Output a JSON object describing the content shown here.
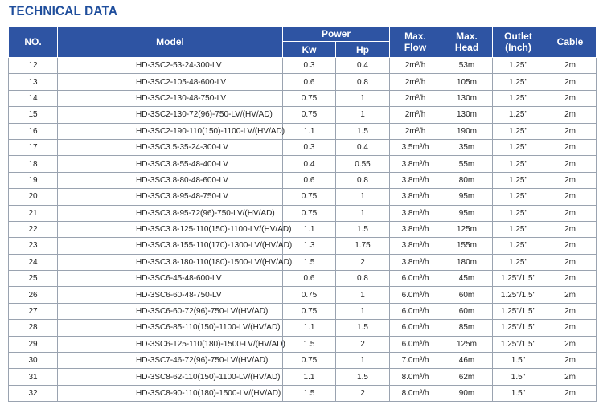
{
  "title": "TECHNICAL DATA",
  "headers": {
    "no": "NO.",
    "model": "Model",
    "power": "Power",
    "kw": "Kw",
    "hp": "Hp",
    "flow": [
      "Max.",
      "Flow"
    ],
    "head": [
      "Max.",
      "Head"
    ],
    "outlet": [
      "Outlet",
      "(Inch)"
    ],
    "cable": "Cable"
  },
  "rows": [
    {
      "no": "12",
      "model": "HD-3SC2-53-24-300-LV",
      "kw": "0.3",
      "hp": "0.4",
      "flow": "2m³/h",
      "head": "53m",
      "outlet": "1.25\"",
      "cable": "2m"
    },
    {
      "no": "13",
      "model": "HD-3SC2-105-48-600-LV",
      "kw": "0.6",
      "hp": "0.8",
      "flow": "2m³/h",
      "head": "105m",
      "outlet": "1.25\"",
      "cable": "2m"
    },
    {
      "no": "14",
      "model": "HD-3SC2-130-48-750-LV",
      "kw": "0.75",
      "hp": "1",
      "flow": "2m³/h",
      "head": "130m",
      "outlet": "1.25\"",
      "cable": "2m"
    },
    {
      "no": "15",
      "model": "HD-3SC2-130-72(96)-750-LV/(HV/AD)",
      "kw": "0.75",
      "hp": "1",
      "flow": "2m³/h",
      "head": "130m",
      "outlet": "1.25\"",
      "cable": "2m"
    },
    {
      "no": "16",
      "model": "HD-3SC2-190-110(150)-1100-LV/(HV/AD)",
      "kw": "1.1",
      "hp": "1.5",
      "flow": "2m³/h",
      "head": "190m",
      "outlet": "1.25\"",
      "cable": "2m"
    },
    {
      "no": "17",
      "model": "HD-3SC3.5-35-24-300-LV",
      "kw": "0.3",
      "hp": "0.4",
      "flow": "3.5m³/h",
      "head": "35m",
      "outlet": "1.25\"",
      "cable": "2m"
    },
    {
      "no": "18",
      "model": "HD-3SC3.8-55-48-400-LV",
      "kw": "0.4",
      "hp": "0.55",
      "flow": "3.8m³/h",
      "head": "55m",
      "outlet": "1.25\"",
      "cable": "2m"
    },
    {
      "no": "19",
      "model": "HD-3SC3.8-80-48-600-LV",
      "kw": "0.6",
      "hp": "0.8",
      "flow": "3.8m³/h",
      "head": "80m",
      "outlet": "1.25\"",
      "cable": "2m"
    },
    {
      "no": "20",
      "model": "HD-3SC3.8-95-48-750-LV",
      "kw": "0.75",
      "hp": "1",
      "flow": "3.8m³/h",
      "head": "95m",
      "outlet": "1.25\"",
      "cable": "2m"
    },
    {
      "no": "21",
      "model": "HD-3SC3.8-95-72(96)-750-LV/(HV/AD)",
      "kw": "0.75",
      "hp": "1",
      "flow": "3.8m³/h",
      "head": "95m",
      "outlet": "1.25\"",
      "cable": "2m"
    },
    {
      "no": "22",
      "model": "HD-3SC3.8-125-110(150)-1100-LV/(HV/AD)",
      "kw": "1.1",
      "hp": "1.5",
      "flow": "3.8m³/h",
      "head": "125m",
      "outlet": "1.25\"",
      "cable": "2m"
    },
    {
      "no": "23",
      "model": "HD-3SC3.8-155-110(170)-1300-LV/(HV/AD)",
      "kw": "1.3",
      "hp": "1.75",
      "flow": "3.8m³/h",
      "head": "155m",
      "outlet": "1.25\"",
      "cable": "2m"
    },
    {
      "no": "24",
      "model": "HD-3SC3.8-180-110(180)-1500-LV/(HV/AD)",
      "kw": "1.5",
      "hp": "2",
      "flow": "3.8m³/h",
      "head": "180m",
      "outlet": "1.25\"",
      "cable": "2m"
    },
    {
      "no": "25",
      "model": "HD-3SC6-45-48-600-LV",
      "kw": "0.6",
      "hp": "0.8",
      "flow": "6.0m³/h",
      "head": "45m",
      "outlet": "1.25\"/1.5\"",
      "cable": "2m"
    },
    {
      "no": "26",
      "model": "HD-3SC6-60-48-750-LV",
      "kw": "0.75",
      "hp": "1",
      "flow": "6.0m³/h",
      "head": "60m",
      "outlet": "1.25\"/1.5\"",
      "cable": "2m"
    },
    {
      "no": "27",
      "model": "HD-3SC6-60-72(96)-750-LV/(HV/AD)",
      "kw": "0.75",
      "hp": "1",
      "flow": "6.0m³/h",
      "head": "60m",
      "outlet": "1.25\"/1.5\"",
      "cable": "2m"
    },
    {
      "no": "28",
      "model": "HD-3SC6-85-110(150)-1100-LV/(HV/AD)",
      "kw": "1.1",
      "hp": "1.5",
      "flow": "6.0m³/h",
      "head": "85m",
      "outlet": "1.25\"/1.5\"",
      "cable": "2m"
    },
    {
      "no": "29",
      "model": "HD-3SC6-125-110(180)-1500-LV/(HV/AD)",
      "kw": "1.5",
      "hp": "2",
      "flow": "6.0m³/h",
      "head": "125m",
      "outlet": "1.25\"/1.5\"",
      "cable": "2m"
    },
    {
      "no": "30",
      "model": "HD-3SC7-46-72(96)-750-LV/(HV/AD)",
      "kw": "0.75",
      "hp": "1",
      "flow": "7.0m³/h",
      "head": "46m",
      "outlet": "1.5\"",
      "cable": "2m"
    },
    {
      "no": "31",
      "model": "HD-3SC8-62-110(150)-1100-LV/(HV/AD)",
      "kw": "1.1",
      "hp": "1.5",
      "flow": "8.0m³/h",
      "head": "62m",
      "outlet": "1.5\"",
      "cable": "2m"
    },
    {
      "no": "32",
      "model": "HD-3SC8-90-110(180)-1500-LV/(HV/AD)",
      "kw": "1.5",
      "hp": "2",
      "flow": "8.0m³/h",
      "head": "90m",
      "outlet": "1.5\"",
      "cable": "2m"
    }
  ],
  "colors": {
    "title": "#1f4e9c",
    "header_bg": "#2e54a3",
    "header_text": "#ffffff",
    "grid": "#9aa3b0"
  }
}
